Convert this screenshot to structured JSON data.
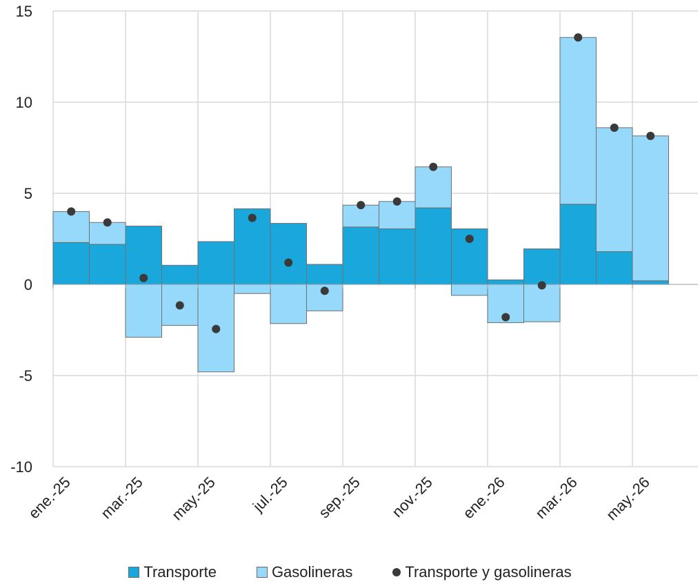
{
  "chart_data": {
    "type": "bar",
    "stacked": true,
    "categories": [
      "ene.-25",
      "feb.-25",
      "mar.-25",
      "abr.-25",
      "may.-25",
      "jun.-25",
      "jul.-25",
      "ago.-25",
      "sep.-25",
      "oct.-25",
      "nov.-25",
      "dic.-25",
      "ene.-26",
      "feb.-26",
      "mar.-26",
      "abr.-26",
      "may.-26"
    ],
    "x_tick_labels": [
      "ene.-25",
      "mar.-25",
      "may.-25",
      "jul.-25",
      "sep.-25",
      "nov.-25",
      "ene.-26",
      "mar.-26",
      "may.-26"
    ],
    "series": [
      {
        "name": "Transporte",
        "type": "bar",
        "color": "#1AA7DB",
        "values": [
          2.3,
          2.2,
          3.2,
          1.05,
          2.35,
          4.15,
          3.35,
          1.1,
          3.15,
          3.05,
          4.2,
          3.05,
          0.25,
          1.95,
          4.4,
          1.8,
          0.2
        ]
      },
      {
        "name": "Gasolineras",
        "type": "bar",
        "color": "#97D9FA",
        "values": [
          1.7,
          1.2,
          -2.9,
          -2.25,
          -4.8,
          -0.5,
          -2.15,
          -1.45,
          1.2,
          1.5,
          2.25,
          -0.6,
          -2.1,
          -2.05,
          9.15,
          6.8,
          7.95
        ]
      },
      {
        "name": "Transporte y gasolineras",
        "type": "scatter",
        "color": "#3a3a3a",
        "values": [
          4.0,
          3.4,
          0.35,
          -1.15,
          -2.45,
          3.65,
          1.2,
          -0.35,
          4.35,
          4.55,
          6.45,
          2.5,
          -1.8,
          -0.05,
          13.55,
          8.6,
          8.15
        ]
      }
    ],
    "y_ticks": [
      15,
      10,
      5,
      0,
      -5,
      -10
    ],
    "ylim": [
      -10,
      15
    ],
    "grid": true,
    "legend_position": "bottom",
    "title": "",
    "xlabel": "",
    "ylabel": ""
  }
}
